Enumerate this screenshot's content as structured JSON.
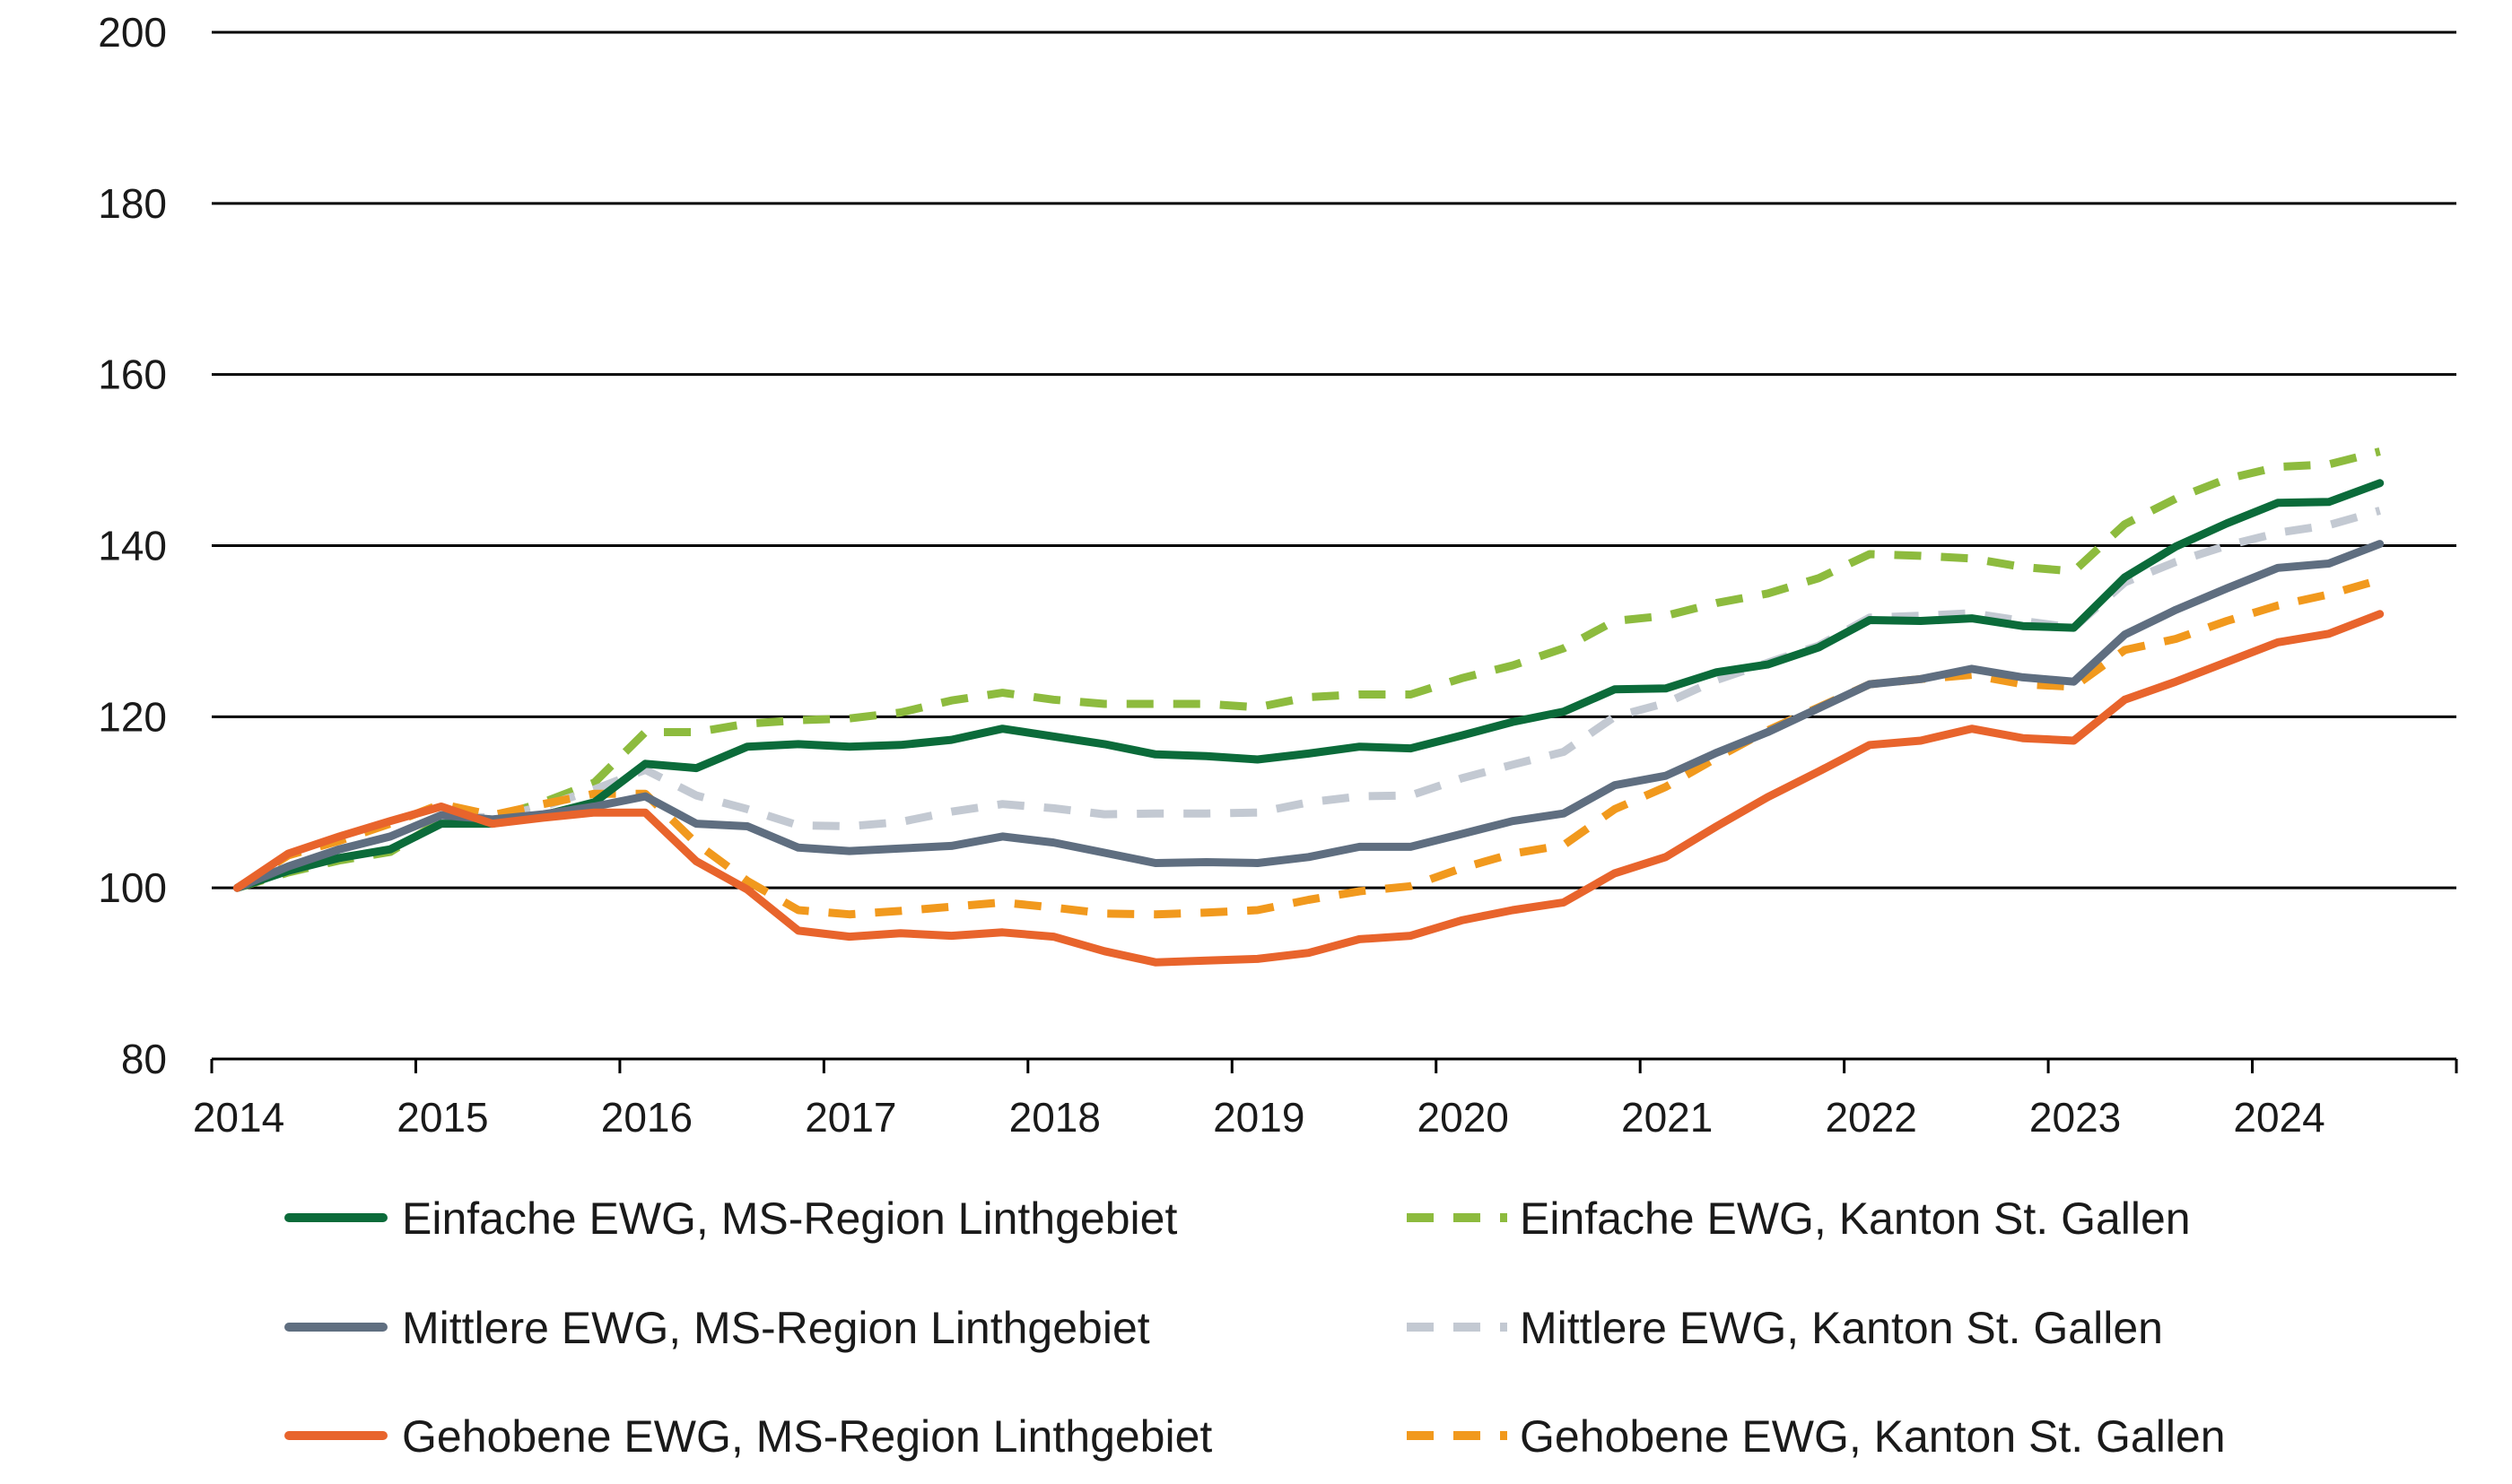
{
  "chart_data": {
    "type": "line",
    "ylim": [
      80,
      200
    ],
    "yticks": [
      80,
      100,
      120,
      140,
      160,
      180,
      200
    ],
    "xlim": [
      2014,
      2025
    ],
    "xticks": [
      "2014",
      "2015",
      "2016",
      "2017",
      "2018",
      "2019",
      "2020",
      "2021",
      "2022",
      "2023",
      "2024"
    ],
    "grid": true,
    "legend_position": "bottom",
    "x": [
      2014.125,
      2014.375,
      2014.625,
      2014.875,
      2015.125,
      2015.375,
      2015.625,
      2015.875,
      2016.125,
      2016.375,
      2016.625,
      2016.875,
      2017.125,
      2017.375,
      2017.625,
      2017.875,
      2018.125,
      2018.375,
      2018.625,
      2018.875,
      2019.125,
      2019.375,
      2019.625,
      2019.875,
      2020.125,
      2020.375,
      2020.625,
      2020.875,
      2021.125,
      2021.375,
      2021.625,
      2021.875,
      2022.125,
      2022.375,
      2022.625,
      2022.875,
      2023.125,
      2023.375,
      2023.625,
      2023.875,
      2024.125,
      2024.375,
      2024.625
    ],
    "series": [
      {
        "name": "Einfache EWG, MS-Region Linthgebiet",
        "color": "#0b6b3a",
        "dash": "solid",
        "values": [
          100,
          102,
          103.5,
          104.5,
          107.5,
          107.5,
          108.5,
          110,
          114.5,
          114,
          116.5,
          116.8,
          116.5,
          116.7,
          117.3,
          118.6,
          117.7,
          116.8,
          115.6,
          115.4,
          115,
          115.7,
          116.5,
          116.3,
          117.8,
          119.4,
          120.6,
          123.2,
          123.3,
          125.2,
          126.1,
          128.1,
          131.3,
          131.2,
          131.5,
          130.6,
          130.4,
          136.3,
          139.9,
          142.6,
          145,
          145.1,
          147.3
        ]
      },
      {
        "name": "Einfache EWG, Kanton St. Gallen",
        "color": "#8dbb3e",
        "dash": "dashed",
        "values": [
          100,
          101.8,
          103.2,
          104.2,
          107.8,
          108.2,
          110,
          112.3,
          118.2,
          118.2,
          119.2,
          119.6,
          119.8,
          120.5,
          121.9,
          122.8,
          122,
          121.5,
          121.5,
          121.5,
          121.1,
          122.3,
          122.6,
          122.6,
          124.5,
          126,
          128,
          131.2,
          131.8,
          133.3,
          134.4,
          136.2,
          139,
          138.8,
          138.5,
          137.5,
          137,
          142.5,
          145.5,
          147.8,
          149.2,
          149.5,
          151
        ]
      },
      {
        "name": "Mittlere EWG, MS-Region Linthgebiet",
        "color": "#5f6e80",
        "dash": "solid",
        "values": [
          100,
          102.5,
          104.5,
          106,
          108.5,
          108,
          108.6,
          109.5,
          110.7,
          107.5,
          107.2,
          104.7,
          104.3,
          104.6,
          104.9,
          106,
          105.3,
          104.1,
          102.9,
          103,
          102.9,
          103.6,
          104.8,
          104.8,
          106.3,
          107.8,
          108.7,
          112,
          113.1,
          115.8,
          118.2,
          121,
          123.8,
          124.4,
          125.6,
          124.6,
          124.1,
          129.6,
          132.5,
          135,
          137.4,
          137.9,
          140.2
        ]
      },
      {
        "name": "Mittlere EWG, Kanton St. Gallen",
        "color": "#c3c9d2",
        "dash": "dashed",
        "values": [
          100,
          102.3,
          104.5,
          106,
          108.5,
          108.2,
          109.5,
          111.5,
          113.8,
          110.8,
          109.2,
          107.3,
          107.2,
          107.7,
          108.9,
          109.8,
          109.3,
          108.6,
          108.7,
          108.7,
          108.8,
          110,
          110.7,
          110.8,
          112.8,
          114.4,
          115.9,
          120,
          121.6,
          124.3,
          126.3,
          128.3,
          131.6,
          131.8,
          132.1,
          131.2,
          130.4,
          135.7,
          138.1,
          140,
          141.5,
          142.4,
          144.1
        ]
      },
      {
        "name": "Gehobene EWG, MS-Region Linthgebiet",
        "color": "#e8642c",
        "dash": "solid",
        "values": [
          100,
          104,
          106,
          107.8,
          109.5,
          107.5,
          108.2,
          108.8,
          108.8,
          103.1,
          99.8,
          95,
          94.3,
          94.7,
          94.4,
          94.8,
          94.3,
          92.6,
          91.3,
          91.5,
          91.7,
          92.4,
          94,
          94.4,
          96.2,
          97.4,
          98.3,
          101.7,
          103.6,
          107.2,
          110.6,
          113.6,
          116.7,
          117.2,
          118.6,
          117.5,
          117.2,
          122,
          124.1,
          126.4,
          128.7,
          129.7,
          132
        ]
      },
      {
        "name": "Gehobene EWG, Kanton St. Gallen",
        "color": "#f1991d",
        "dash": "dashed",
        "values": [
          100,
          103.8,
          105.5,
          107.5,
          109.8,
          108.5,
          109.8,
          111,
          111,
          105.2,
          100.8,
          97.4,
          96.9,
          97.3,
          97.8,
          98.3,
          97.7,
          97,
          96.9,
          97.1,
          97.4,
          98.6,
          99.6,
          100.2,
          102.3,
          104,
          105,
          109.2,
          111.8,
          115.2,
          118.4,
          121.1,
          123.8,
          124.4,
          124.9,
          123.8,
          123.5,
          127.8,
          129.1,
          131.2,
          133,
          134.3,
          136
        ]
      }
    ]
  }
}
